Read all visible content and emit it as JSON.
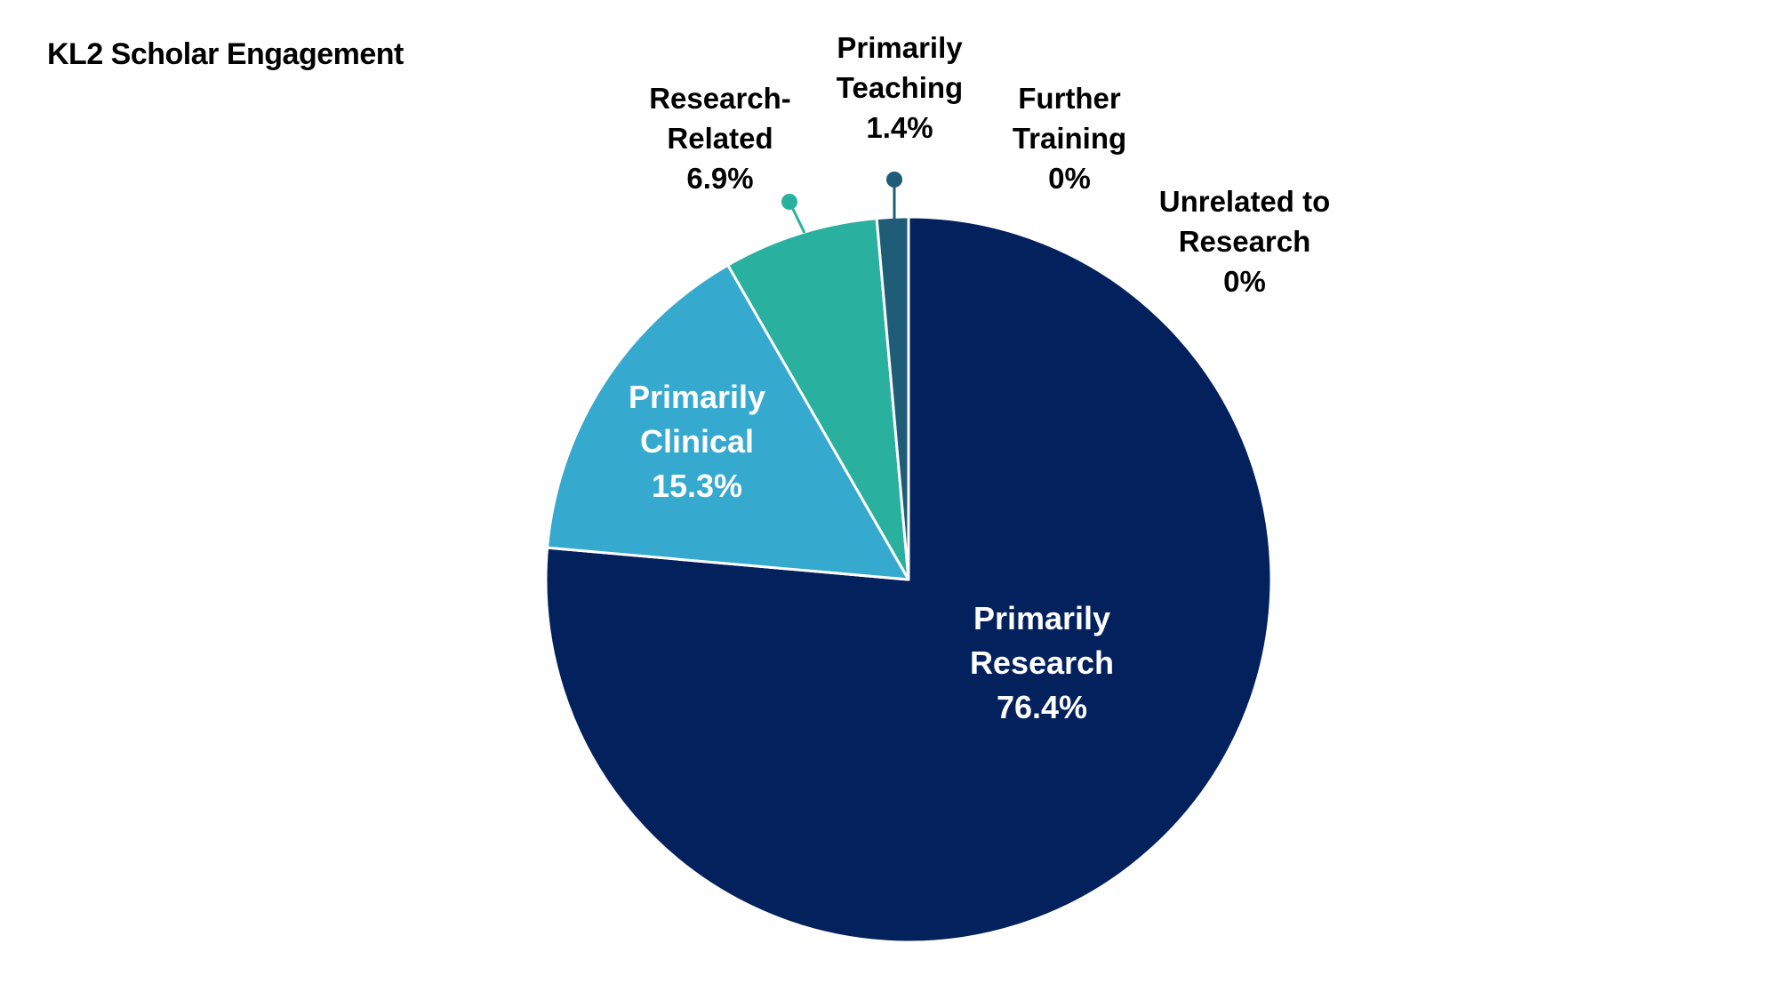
{
  "chart_data": {
    "type": "pie",
    "title": "KL2 Scholar Engagement",
    "slices": [
      {
        "name": "Primarily Research",
        "label_lines": [
          "Primarily",
          "Research"
        ],
        "value": 76.4,
        "value_label": "76.4%",
        "color": "#03215D",
        "label_position": "inside"
      },
      {
        "name": "Primarily Clinical",
        "label_lines": [
          "Primarily",
          "Clinical"
        ],
        "value": 15.3,
        "value_label": "15.3%",
        "color": "#36A9CF",
        "label_position": "inside"
      },
      {
        "name": "Research-Related",
        "label_lines": [
          "Research-",
          "Related"
        ],
        "value": 6.9,
        "value_label": "6.9%",
        "color": "#29B09F",
        "label_position": "outside"
      },
      {
        "name": "Primarily Teaching",
        "label_lines": [
          "Primarily",
          "Teaching"
        ],
        "value": 1.4,
        "value_label": "1.4%",
        "color": "#1F5C78",
        "label_position": "outside"
      },
      {
        "name": "Further Training",
        "label_lines": [
          "Further",
          "Training"
        ],
        "value": 0,
        "value_label": "0%",
        "color": "#4FB0C6",
        "label_position": "outside"
      },
      {
        "name": "Unrelated to Research",
        "label_lines": [
          "Unrelated to",
          "Research"
        ],
        "value": 0,
        "value_label": "0%",
        "color": "#7FC8D8",
        "label_position": "outside"
      }
    ],
    "start_angle": "12 o'clock",
    "direction": "clockwise",
    "legend": "none"
  }
}
